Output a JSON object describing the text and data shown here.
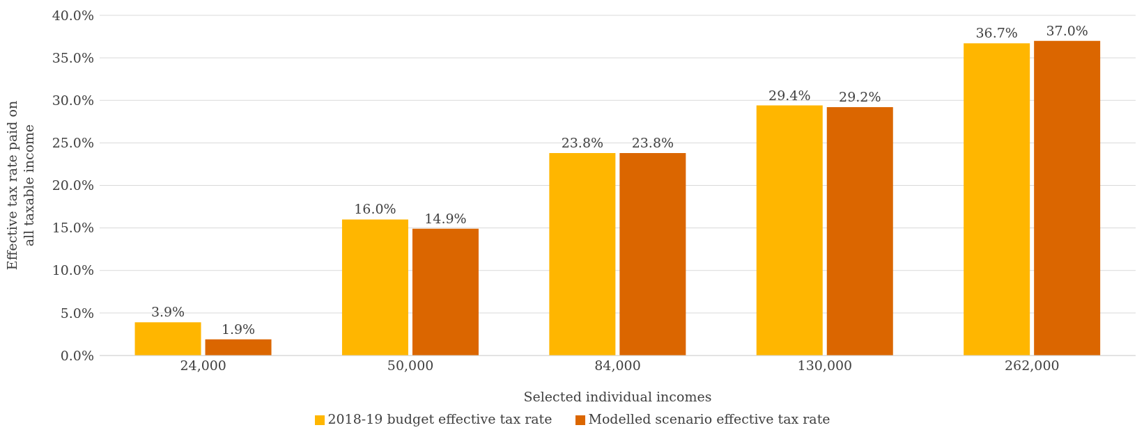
{
  "chart_data": {
    "type": "bar",
    "xlabel": "Selected individual incomes",
    "ylabel": "Effective tax rate paid on all taxable income",
    "categories": [
      "24,000",
      "50,000",
      "84,000",
      "130,000",
      "262,000"
    ],
    "series": [
      {
        "name": "2018-19 budget effective tax rate",
        "color": "#ffb600",
        "values": [
          3.9,
          16.0,
          23.8,
          29.4,
          36.7
        ],
        "value_labels": [
          "3.9%",
          "16.0%",
          "23.8%",
          "29.4%",
          "36.7%"
        ]
      },
      {
        "name": "Modelled scenario effective tax rate",
        "color": "#db6600",
        "values": [
          1.9,
          14.9,
          23.8,
          29.2,
          37.0
        ],
        "value_labels": [
          "1.9%",
          "14.9%",
          "23.8%",
          "29.2%",
          "37.0%"
        ]
      }
    ],
    "ylim": [
      0,
      40
    ],
    "yticks": [
      {
        "value": 0,
        "label": "0.0%"
      },
      {
        "value": 5,
        "label": "5.0%"
      },
      {
        "value": 10,
        "label": "10.0%"
      },
      {
        "value": 15,
        "label": "15.0%"
      },
      {
        "value": 20,
        "label": "20.0%"
      },
      {
        "value": 25,
        "label": "25.0%"
      },
      {
        "value": 30,
        "label": "30.0%"
      },
      {
        "value": 35,
        "label": "35.0%"
      },
      {
        "value": 40,
        "label": "40.0%"
      }
    ],
    "grid": "y",
    "legend": "bottom"
  }
}
